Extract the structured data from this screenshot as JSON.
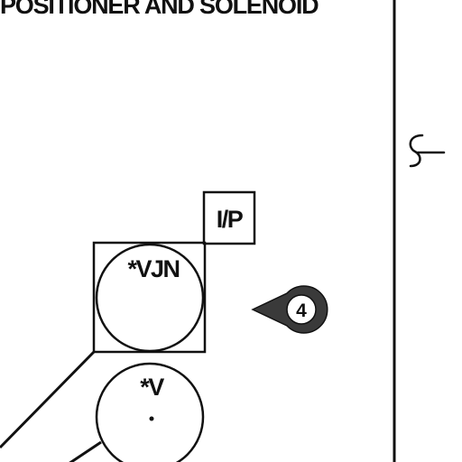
{
  "title": "POSITIONER AND SOLENOID",
  "ip_box": {
    "label": "I/P"
  },
  "instrument_vjn": {
    "label": "*VJN"
  },
  "instrument_v": {
    "label": "*V"
  },
  "callout": {
    "number": "4"
  },
  "colors": {
    "line": "#111111",
    "background": "#ffffff",
    "callout_fill": "#3a3a3a"
  },
  "icons": {
    "break_symbol": "s-break-icon",
    "callout": "balloon-callout-icon"
  }
}
